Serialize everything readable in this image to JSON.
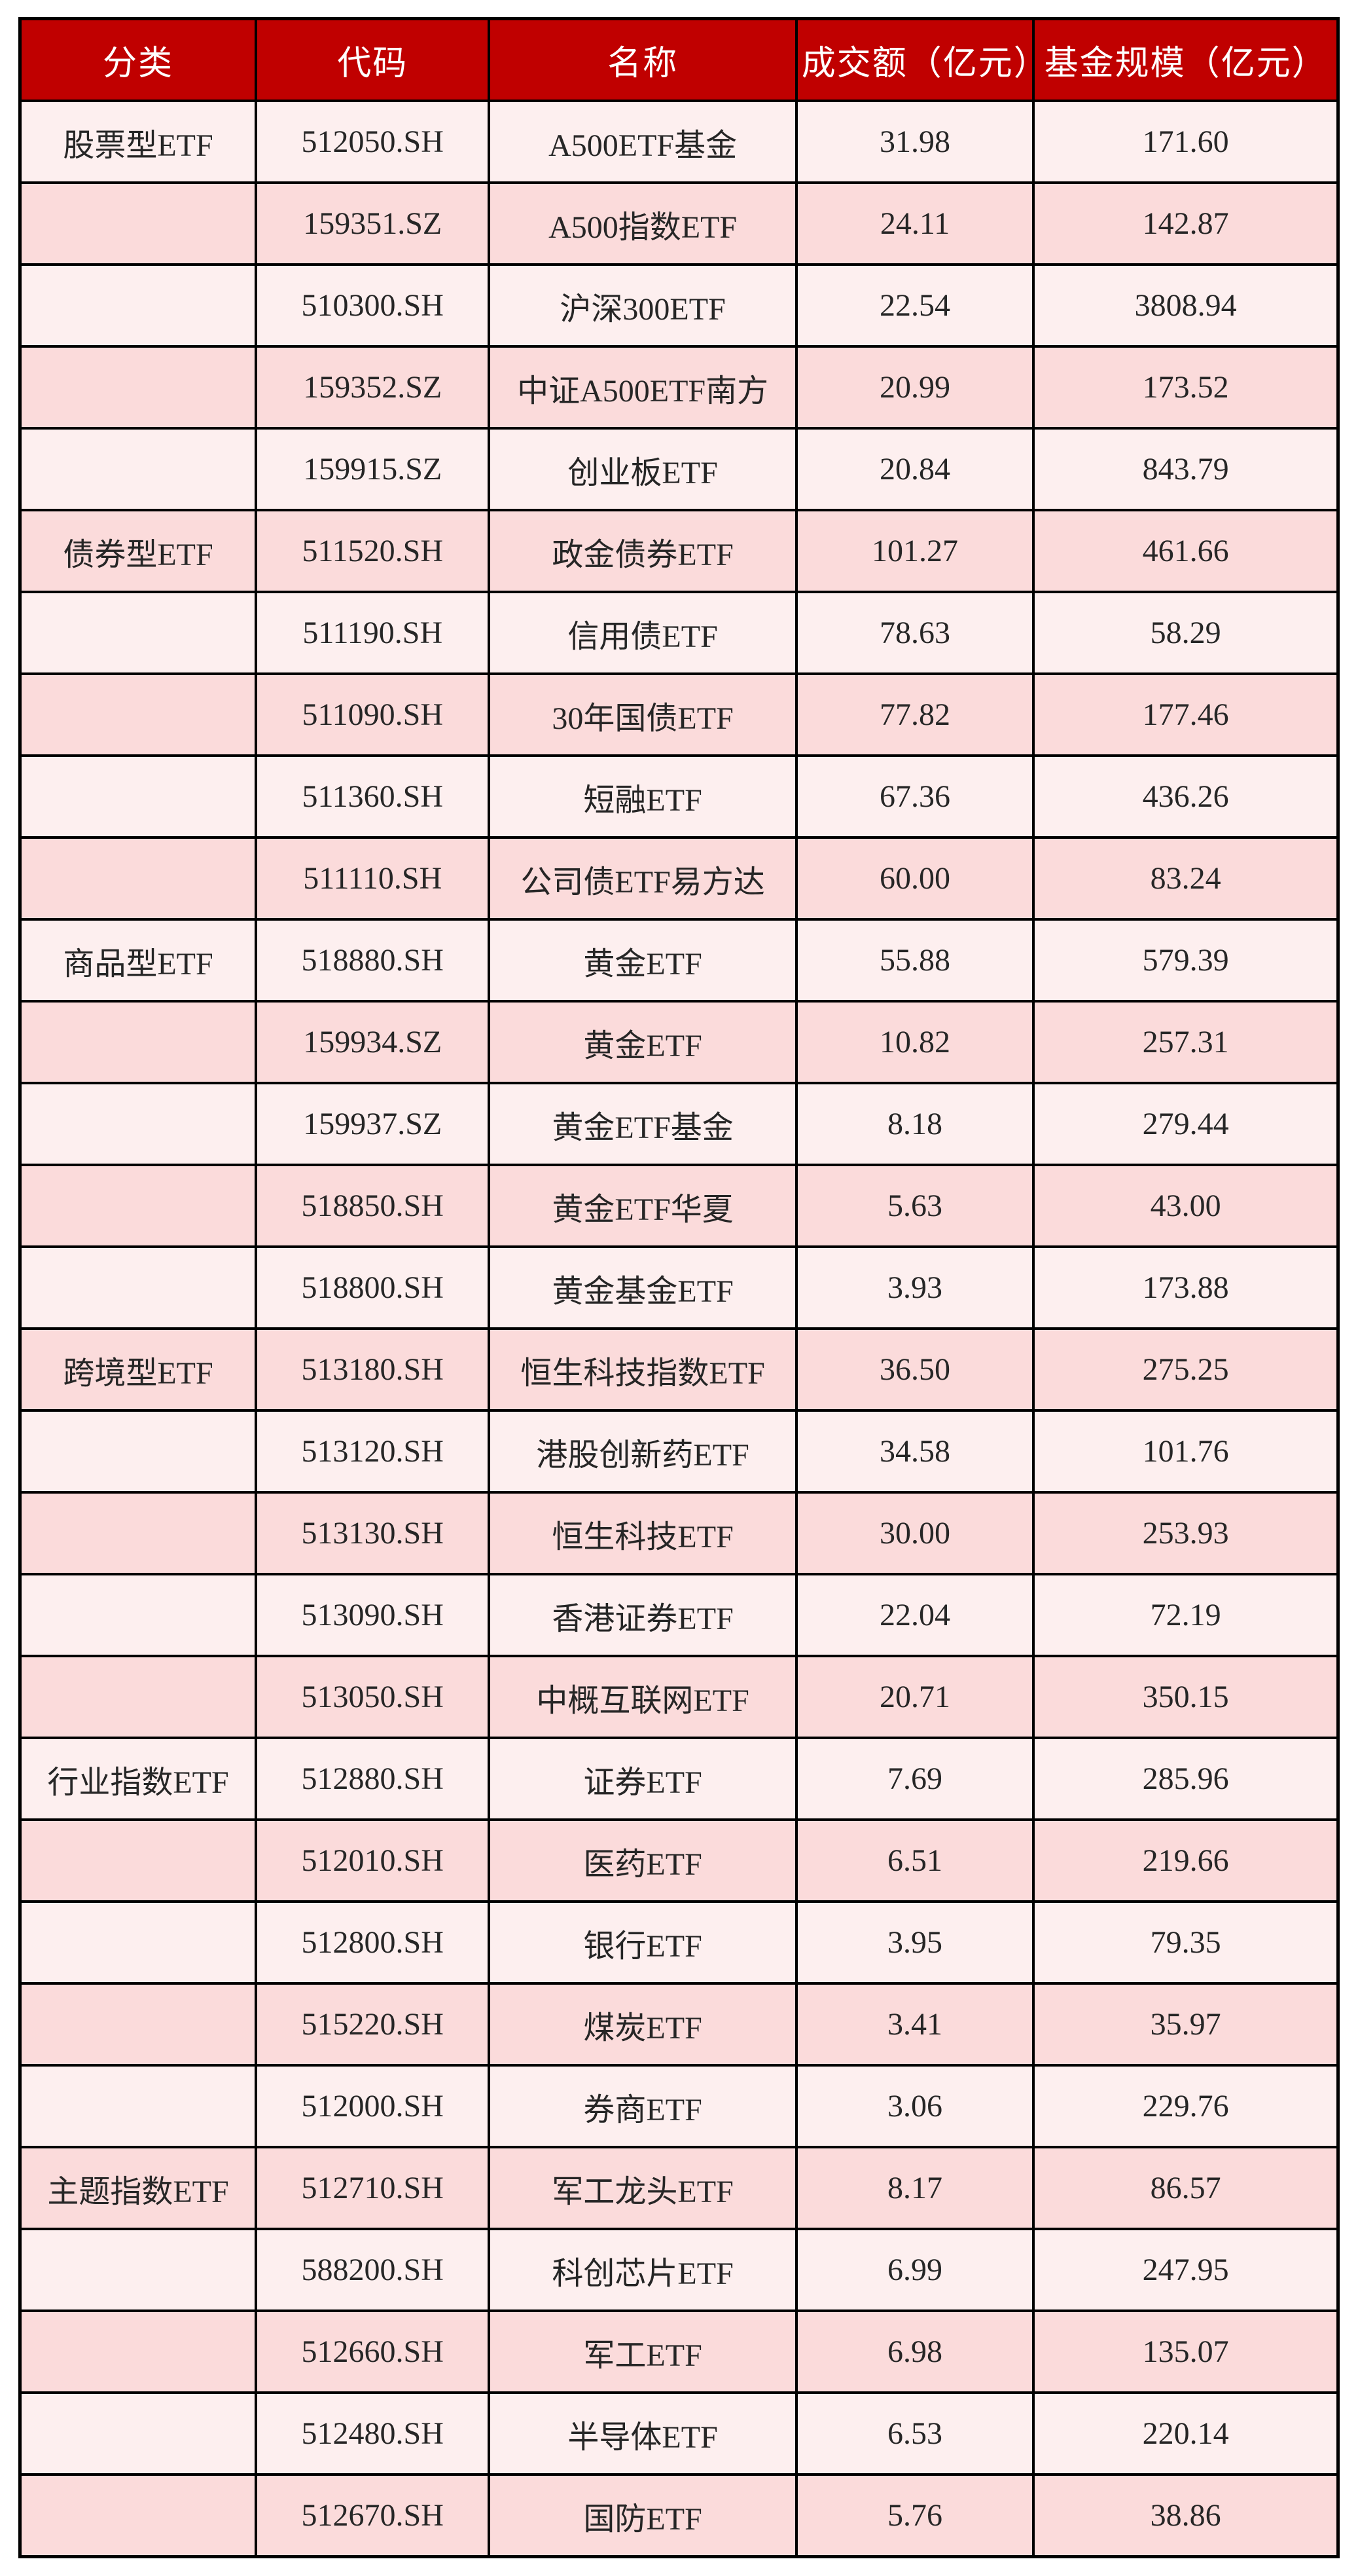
{
  "style": {
    "header_bg": "#C00000",
    "header_text": "#FFFFFF",
    "row_light": "#FDEFEF",
    "row_dark": "#FBDBDB",
    "grid": "#000000",
    "body_text": "#262626"
  },
  "chart_data": {
    "type": "table",
    "title": "",
    "columns": [
      "分类",
      "代码",
      "名称",
      "成交额（亿元）",
      "基金规模（亿元）"
    ],
    "legend_position": "none",
    "grid": true,
    "rows": [
      [
        "股票型ETF",
        "512050.SH",
        "A500ETF基金",
        31.98,
        171.6
      ],
      [
        "",
        "159351.SZ",
        "A500指数ETF",
        24.11,
        142.87
      ],
      [
        "",
        "510300.SH",
        "沪深300ETF",
        22.54,
        3808.94
      ],
      [
        "",
        "159352.SZ",
        "中证A500ETF南方",
        20.99,
        173.52
      ],
      [
        "",
        "159915.SZ",
        "创业板ETF",
        20.84,
        843.79
      ],
      [
        "债券型ETF",
        "511520.SH",
        "政金债券ETF",
        101.27,
        461.66
      ],
      [
        "",
        "511190.SH",
        "信用债ETF",
        78.63,
        58.29
      ],
      [
        "",
        "511090.SH",
        "30年国债ETF",
        77.82,
        177.46
      ],
      [
        "",
        "511360.SH",
        "短融ETF",
        67.36,
        436.26
      ],
      [
        "",
        "511110.SH",
        "公司债ETF易方达",
        60.0,
        83.24
      ],
      [
        "商品型ETF",
        "518880.SH",
        "黄金ETF",
        55.88,
        579.39
      ],
      [
        "",
        "159934.SZ",
        "黄金ETF",
        10.82,
        257.31
      ],
      [
        "",
        "159937.SZ",
        "黄金ETF基金",
        8.18,
        279.44
      ],
      [
        "",
        "518850.SH",
        "黄金ETF华夏",
        5.63,
        43.0
      ],
      [
        "",
        "518800.SH",
        "黄金基金ETF",
        3.93,
        173.88
      ],
      [
        "跨境型ETF",
        "513180.SH",
        "恒生科技指数ETF",
        36.5,
        275.25
      ],
      [
        "",
        "513120.SH",
        "港股创新药ETF",
        34.58,
        101.76
      ],
      [
        "",
        "513130.SH",
        "恒生科技ETF",
        30.0,
        253.93
      ],
      [
        "",
        "513090.SH",
        "香港证券ETF",
        22.04,
        72.19
      ],
      [
        "",
        "513050.SH",
        "中概互联网ETF",
        20.71,
        350.15
      ],
      [
        "行业指数ETF",
        "512880.SH",
        "证券ETF",
        7.69,
        285.96
      ],
      [
        "",
        "512010.SH",
        "医药ETF",
        6.51,
        219.66
      ],
      [
        "",
        "512800.SH",
        "银行ETF",
        3.95,
        79.35
      ],
      [
        "",
        "515220.SH",
        "煤炭ETF",
        3.41,
        35.97
      ],
      [
        "",
        "512000.SH",
        "券商ETF",
        3.06,
        229.76
      ],
      [
        "主题指数ETF",
        "512710.SH",
        "军工龙头ETF",
        8.17,
        86.57
      ],
      [
        "",
        "588200.SH",
        "科创芯片ETF",
        6.99,
        247.95
      ],
      [
        "",
        "512660.SH",
        "军工ETF",
        6.98,
        135.07
      ],
      [
        "",
        "512480.SH",
        "半导体ETF",
        6.53,
        220.14
      ],
      [
        "",
        "512670.SH",
        "国防ETF",
        5.76,
        38.86
      ]
    ]
  }
}
